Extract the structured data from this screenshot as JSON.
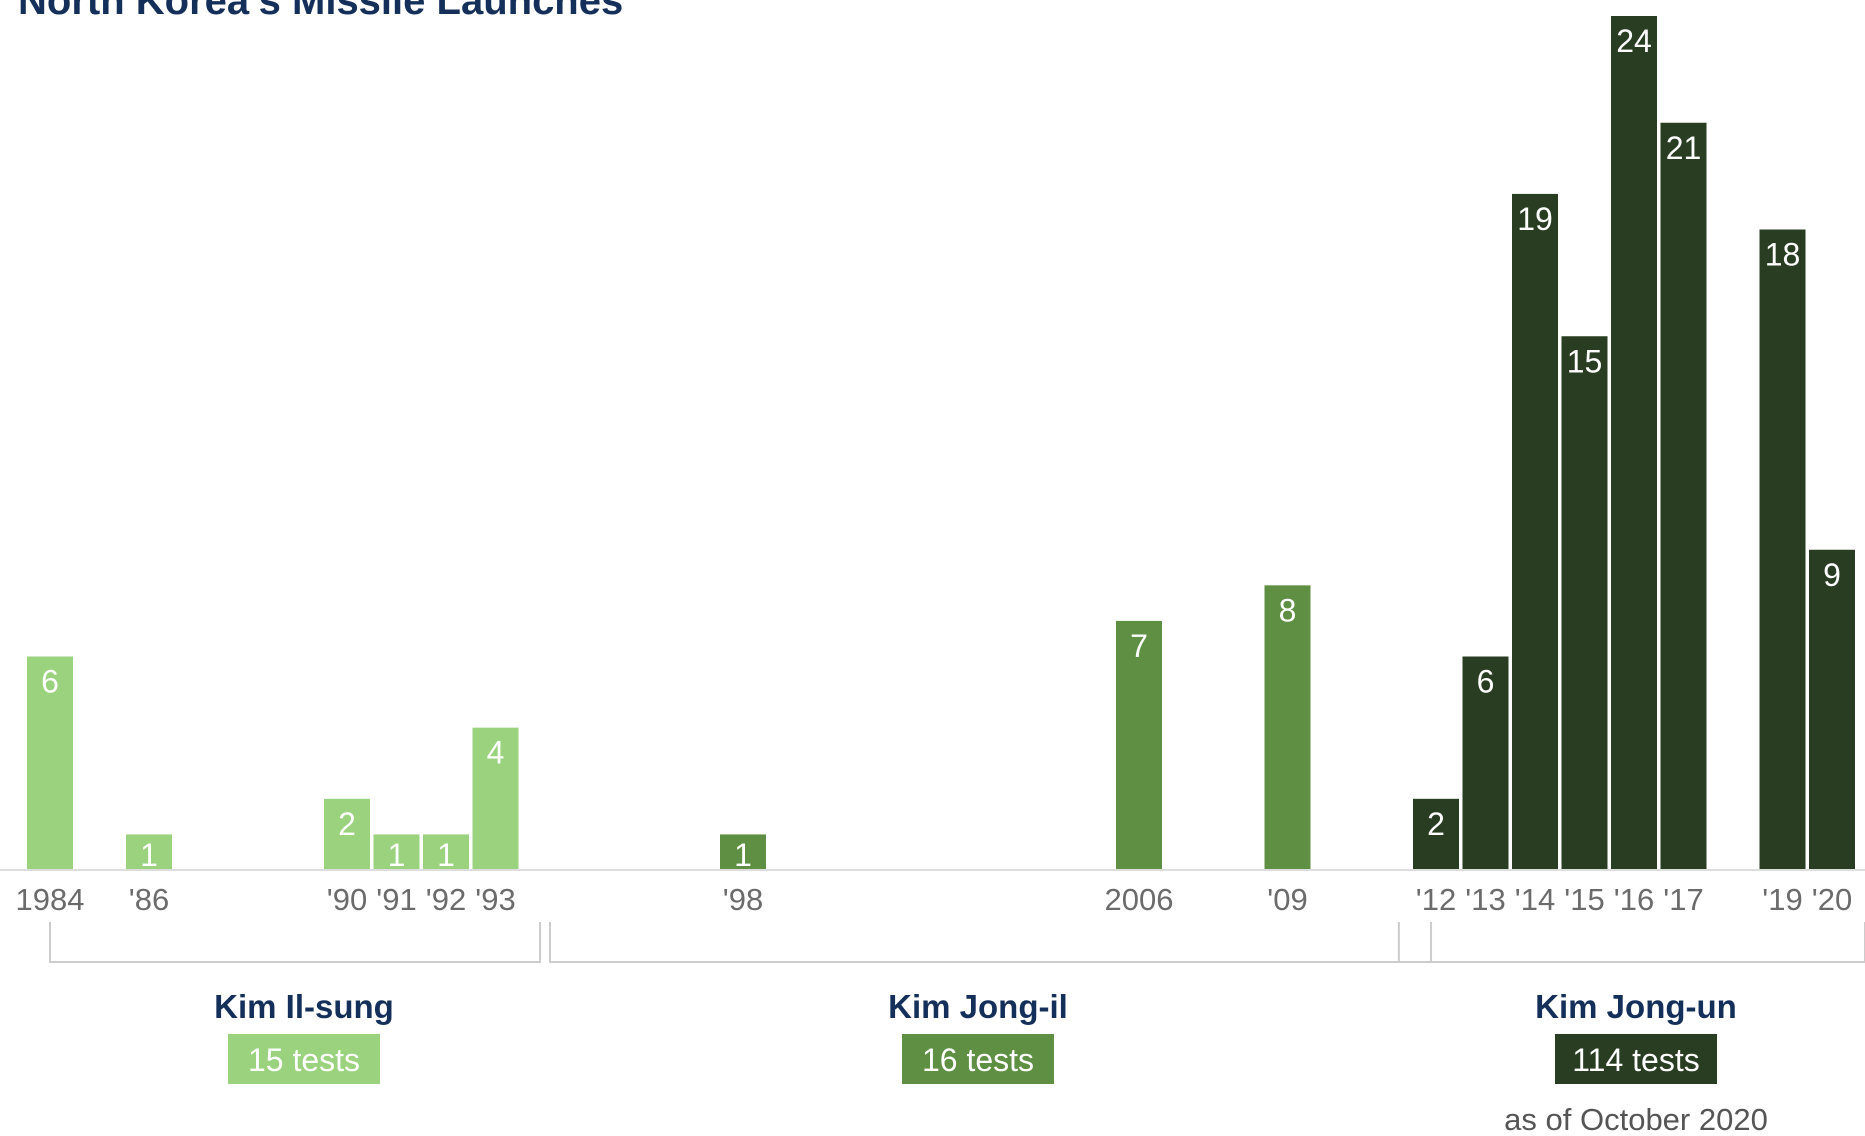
{
  "chart_data": {
    "type": "bar",
    "title": "North Korea's Missile Launches",
    "xlabel": "",
    "ylabel": "",
    "ylim": [
      0,
      24
    ],
    "grid": false,
    "legend": "none",
    "colors": {
      "kim_il_sung": "#9ad27d",
      "kim_jong_il": "#5e8f42",
      "kim_jong_un": "#283d21",
      "axis": "#dddddd",
      "bracket": "#cccccc"
    },
    "bars": [
      {
        "year": 1984,
        "tick": "1984",
        "value": 6,
        "leader": "kim_il_sung"
      },
      {
        "year": 1986,
        "tick": "'86",
        "value": 1,
        "leader": "kim_il_sung"
      },
      {
        "year": 1990,
        "tick": "'90",
        "value": 2,
        "leader": "kim_il_sung"
      },
      {
        "year": 1991,
        "tick": "'91",
        "value": 1,
        "leader": "kim_il_sung"
      },
      {
        "year": 1992,
        "tick": "'92",
        "value": 1,
        "leader": "kim_il_sung"
      },
      {
        "year": 1993,
        "tick": "'93",
        "value": 4,
        "leader": "kim_il_sung"
      },
      {
        "year": 1998,
        "tick": "'98",
        "value": 1,
        "leader": "kim_jong_il"
      },
      {
        "year": 2006,
        "tick": "2006",
        "value": 7,
        "leader": "kim_jong_il"
      },
      {
        "year": 2009,
        "tick": "'09",
        "value": 8,
        "leader": "kim_jong_il"
      },
      {
        "year": 2012,
        "tick": "'12",
        "value": 2,
        "leader": "kim_jong_un"
      },
      {
        "year": 2013,
        "tick": "'13",
        "value": 6,
        "leader": "kim_jong_un"
      },
      {
        "year": 2014,
        "tick": "'14",
        "value": 19,
        "leader": "kim_jong_un"
      },
      {
        "year": 2015,
        "tick": "'15",
        "value": 15,
        "leader": "kim_jong_un"
      },
      {
        "year": 2016,
        "tick": "'16",
        "value": 24,
        "leader": "kim_jong_un"
      },
      {
        "year": 2017,
        "tick": "'17",
        "value": 21,
        "leader": "kim_jong_un"
      },
      {
        "year": 2019,
        "tick": "'19",
        "value": 18,
        "leader": "kim_jong_un"
      },
      {
        "year": 2020,
        "tick": "'20",
        "value": 9,
        "leader": "kim_jong_un"
      }
    ],
    "groups": [
      {
        "key": "kim_il_sung",
        "name": "Kim Il-sung",
        "total_label": "15 tests",
        "first_year": 1984,
        "last_year": 1993
      },
      {
        "key": "kim_jong_il",
        "name": "Kim Jong-il",
        "total_label": "16 tests",
        "first_year": 1994,
        "last_year": 2011
      },
      {
        "key": "kim_jong_un",
        "name": "Kim Jong-un",
        "total_label": "114 tests",
        "first_year": 2012,
        "last_year": 2020,
        "note": "as of October 2020"
      }
    ]
  }
}
